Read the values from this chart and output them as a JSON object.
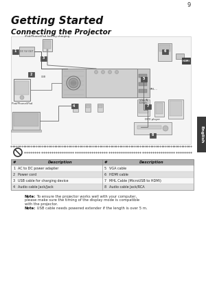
{
  "page_number": "9",
  "title": "Getting Started",
  "subtitle": "Connecting the Projector",
  "bg_color": "#ffffff",
  "tab_color": "#3a3a3a",
  "tab_text": "English",
  "table_headers": [
    "#",
    "Description",
    "#",
    "Description"
  ],
  "table_rows": [
    [
      "1",
      "AC to DC power adapter",
      "5",
      "VGA cable"
    ],
    [
      "2",
      "Power cord",
      "6",
      "HDMI cable"
    ],
    [
      "3",
      "USB cable for charging device",
      "7",
      "MHL Cable (MicroUSB to HDMI)"
    ],
    [
      "4",
      "Audio cable Jack/Jack",
      "8",
      "Audio cable Jack/RCA"
    ]
  ],
  "table_header_bg": "#b0b0b0",
  "table_row_bg_alt": "#e0e0e0",
  "table_row_bg": "#f8f8f8",
  "note1_bold": "Note:",
  "note1_regular": " To ensure the projector works well with your computer,\nplease make sure the timing of the display mode is compatible\nwith the projector.",
  "note2_bold": "Note:",
  "note2_regular": " USB cable needs powered extender if the length is over 5 m.",
  "dot_color": "#555555",
  "diagram_label": "iPod/Phone/iPad battery charging",
  "diagram_label2": "iPod/Phone/iPad",
  "diagram_label3": "DVD player"
}
